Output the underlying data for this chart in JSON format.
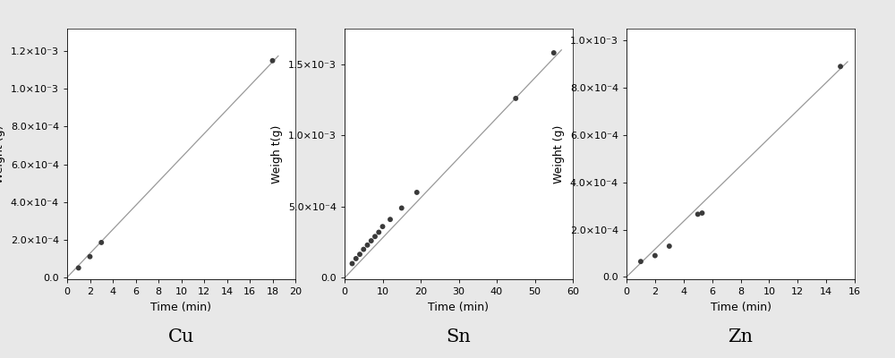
{
  "cu": {
    "x": [
      1,
      2,
      3,
      18
    ],
    "y": [
      5e-05,
      0.00011,
      0.000185,
      0.00115
    ],
    "xlabel": "Time (min)",
    "ylabel": "Weight (g)",
    "xlim": [
      0,
      20
    ],
    "ylim": [
      -1e-05,
      0.00132
    ],
    "xticks": [
      0,
      2,
      4,
      6,
      8,
      10,
      12,
      14,
      16,
      18,
      20
    ],
    "yticks": [
      0.0,
      0.0002,
      0.0004,
      0.0006,
      0.0008,
      0.001,
      0.0012
    ],
    "line_x": [
      0,
      18.5
    ],
    "line_y": [
      0,
      0.001175
    ]
  },
  "sn": {
    "x": [
      2,
      3,
      4,
      5,
      6,
      7,
      8,
      9,
      10,
      12,
      15,
      19,
      45,
      55
    ],
    "y": [
      0.0001,
      0.000135,
      0.000165,
      0.0002,
      0.00023,
      0.00026,
      0.00029,
      0.00032,
      0.00036,
      0.00041,
      0.00049,
      0.0006,
      0.00126,
      0.00158
    ],
    "xlabel": "Time (min)",
    "ylabel": "Weigh t(g)",
    "xlim": [
      0,
      60
    ],
    "ylim": [
      -1e-05,
      0.00175
    ],
    "xticks": [
      0,
      10,
      20,
      30,
      40,
      50,
      60
    ],
    "yticks": [
      0.0,
      0.0005,
      0.001,
      0.0015
    ],
    "line_x": [
      0,
      57
    ],
    "line_y": [
      0,
      0.0016
    ]
  },
  "zn": {
    "x": [
      1,
      2,
      3,
      5,
      5.3,
      15
    ],
    "y": [
      6.5e-05,
      9e-05,
      0.00013,
      0.000265,
      0.00027,
      0.00089
    ],
    "xlabel": "Time (min)",
    "ylabel": "Weight (g)",
    "xlim": [
      0,
      16
    ],
    "ylim": [
      -1e-05,
      0.00105
    ],
    "xticks": [
      0,
      2,
      4,
      6,
      8,
      10,
      12,
      14,
      16
    ],
    "yticks": [
      0.0,
      0.0002,
      0.0004,
      0.0006,
      0.0008,
      0.001
    ],
    "line_x": [
      0,
      15.5
    ],
    "line_y": [
      0,
      0.00091
    ]
  },
  "sublabels": [
    "Cu",
    "Sn",
    "Zn"
  ],
  "line_color": "#999999",
  "marker_color": "#3a3a3a",
  "marker_size": 18,
  "bg_color": "#e8e8e8",
  "plot_bg_color": "#ffffff",
  "label_fontsize": 9,
  "tick_fontsize": 8,
  "sublabel_fontsize": 15
}
